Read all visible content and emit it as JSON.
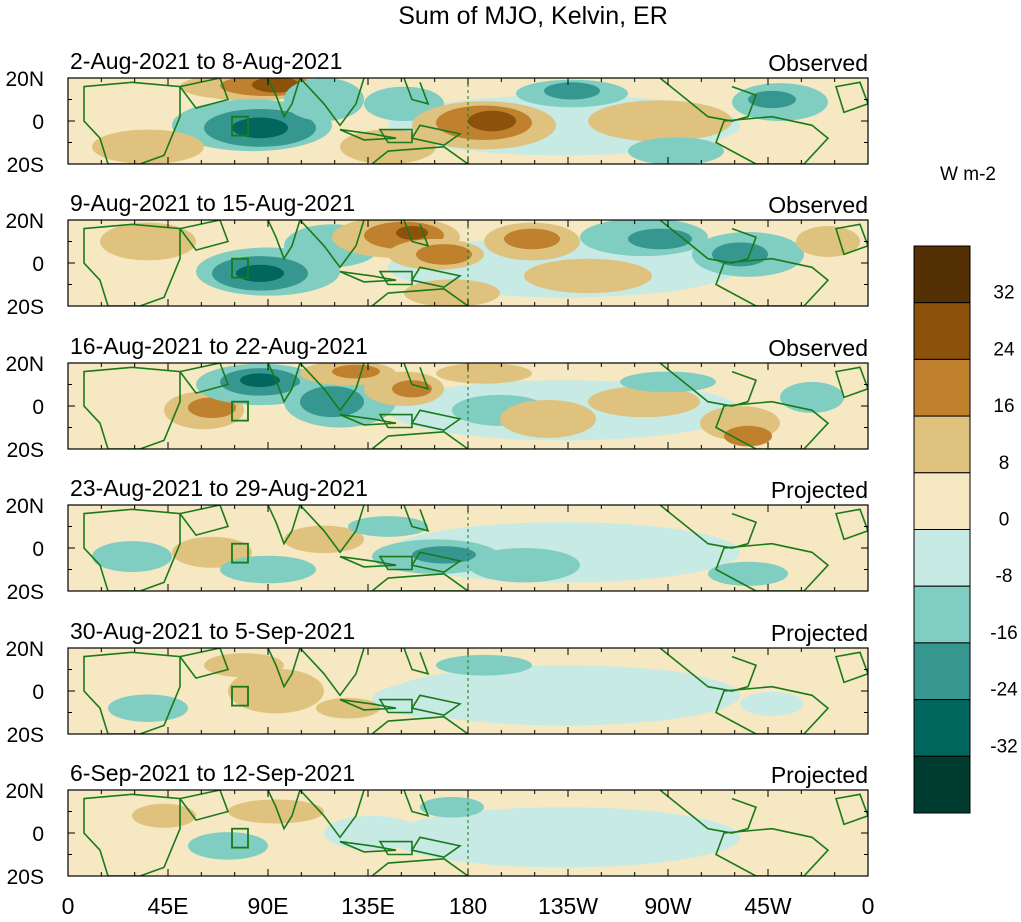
{
  "title": "Sum of MJO, Kelvin, ER",
  "units_label": "W m-2",
  "y_labels": [
    "20N",
    "0",
    "20S"
  ],
  "x_labels": [
    "0",
    "45E",
    "90E",
    "135E",
    "180",
    "135W",
    "90W",
    "45W",
    "0"
  ],
  "panels": [
    {
      "date_range": "2-Aug-2021 to 8-Aug-2021",
      "status": "Observed"
    },
    {
      "date_range": "9-Aug-2021 to 15-Aug-2021",
      "status": "Observed"
    },
    {
      "date_range": "16-Aug-2021 to 22-Aug-2021",
      "status": "Observed"
    },
    {
      "date_range": "23-Aug-2021 to 29-Aug-2021",
      "status": "Projected"
    },
    {
      "date_range": "30-Aug-2021 to 5-Sep-2021",
      "status": "Projected"
    },
    {
      "date_range": "6-Sep-2021 to 12-Sep-2021",
      "status": "Projected"
    }
  ],
  "colorbar": {
    "labels": [
      "32",
      "24",
      "16",
      "8",
      "0",
      "-8",
      "-16",
      "-24",
      "-32"
    ],
    "colors": [
      "#543005",
      "#8c510a",
      "#bf812d",
      "#dfc27d",
      "#f6e8c3",
      "#c7eae5",
      "#80cdc1",
      "#35978f",
      "#01665e",
      "#003c30"
    ]
  },
  "colors": {
    "coastline": "#1a7a1a",
    "anomaly_colors_hex": "see colorbar"
  }
}
